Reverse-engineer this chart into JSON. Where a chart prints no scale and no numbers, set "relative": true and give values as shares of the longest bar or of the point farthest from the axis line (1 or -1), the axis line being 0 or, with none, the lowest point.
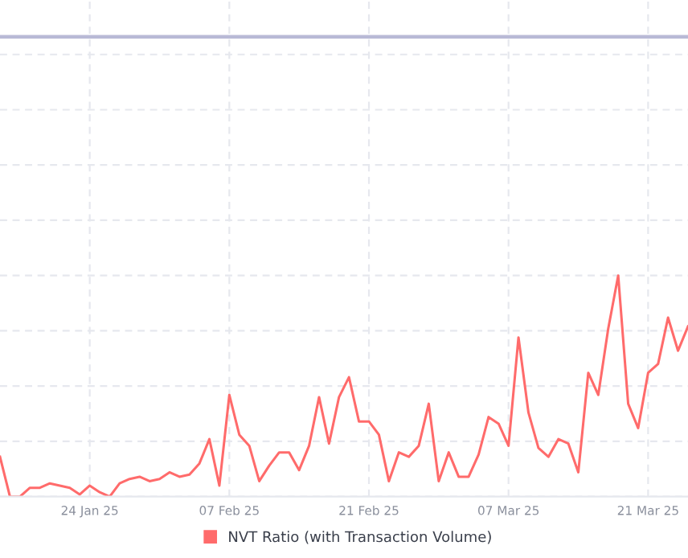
{
  "chart_data": {
    "type": "line",
    "relative": true,
    "grid": true,
    "legend": "bottom",
    "marker": "none",
    "line_style": "solid",
    "tick_labels": "x",
    "x": [
      "2025-01-15",
      "2025-01-16",
      "2025-01-17",
      "2025-01-18",
      "2025-01-19",
      "2025-01-20",
      "2025-01-21",
      "2025-01-22",
      "2025-01-23",
      "2025-01-24",
      "2025-01-25",
      "2025-01-26",
      "2025-01-27",
      "2025-01-28",
      "2025-01-29",
      "2025-01-30",
      "2025-01-31",
      "2025-02-01",
      "2025-02-02",
      "2025-02-03",
      "2025-02-04",
      "2025-02-05",
      "2025-02-06",
      "2025-02-07",
      "2025-02-08",
      "2025-02-09",
      "2025-02-10",
      "2025-02-11",
      "2025-02-12",
      "2025-02-13",
      "2025-02-14",
      "2025-02-15",
      "2025-02-16",
      "2025-02-17",
      "2025-02-18",
      "2025-02-19",
      "2025-02-20",
      "2025-02-21",
      "2025-02-22",
      "2025-02-23",
      "2025-02-24",
      "2025-02-25",
      "2025-02-26",
      "2025-02-27",
      "2025-02-28",
      "2025-03-01",
      "2025-03-02",
      "2025-03-03",
      "2025-03-04",
      "2025-03-05",
      "2025-03-06",
      "2025-03-07",
      "2025-03-08",
      "2025-03-09",
      "2025-03-10",
      "2025-03-11",
      "2025-03-12",
      "2025-03-13",
      "2025-03-14",
      "2025-03-15",
      "2025-03-16",
      "2025-03-17",
      "2025-03-18",
      "2025-03-19",
      "2025-03-20",
      "2025-03-21",
      "2025-03-22",
      "2025-03-23",
      "2025-03-24",
      "2025-03-25"
    ],
    "xlim": [
      "2025-01-15",
      "2025-03-25"
    ],
    "xticks": [
      {
        "value": "2025-01-24",
        "label": "24 Jan 25"
      },
      {
        "value": "2025-02-07",
        "label": "07 Feb 25"
      },
      {
        "value": "2025-02-21",
        "label": "21 Feb 25"
      },
      {
        "value": "2025-03-07",
        "label": "07 Mar 25"
      },
      {
        "value": "2025-03-21",
        "label": "21 Mar 25"
      }
    ],
    "series": [
      {
        "name": "NVT Ratio (with Transaction Volume)",
        "color": "#ff6b6b",
        "values": [
          0.18,
          0,
          0,
          0.04,
          0.04,
          0.06,
          0.05,
          0.04,
          0.01,
          0.05,
          0.02,
          0,
          0.06,
          0.08,
          0.09,
          0.07,
          0.08,
          0.11,
          0.09,
          0.1,
          0.15,
          0.26,
          0.05,
          0.46,
          0.28,
          0.23,
          0.07,
          0.14,
          0.2,
          0.2,
          0.12,
          0.23,
          0.45,
          0.24,
          0.45,
          0.54,
          0.34,
          0.34,
          0.28,
          0.07,
          0.2,
          0.18,
          0.23,
          0.42,
          0.07,
          0.2,
          0.09,
          0.09,
          0.19,
          0.36,
          0.33,
          0.23,
          0.72,
          0.38,
          0.22,
          0.18,
          0.26,
          0.24,
          0.11,
          0.56,
          0.46,
          0.76,
          1,
          0.42,
          0.31,
          0.56,
          0.6,
          0.81,
          0.66,
          0.77
        ]
      }
    ],
    "ref_lines": [
      {
        "axis": "y",
        "value": 2.08,
        "color": "#b9bad6"
      }
    ]
  }
}
